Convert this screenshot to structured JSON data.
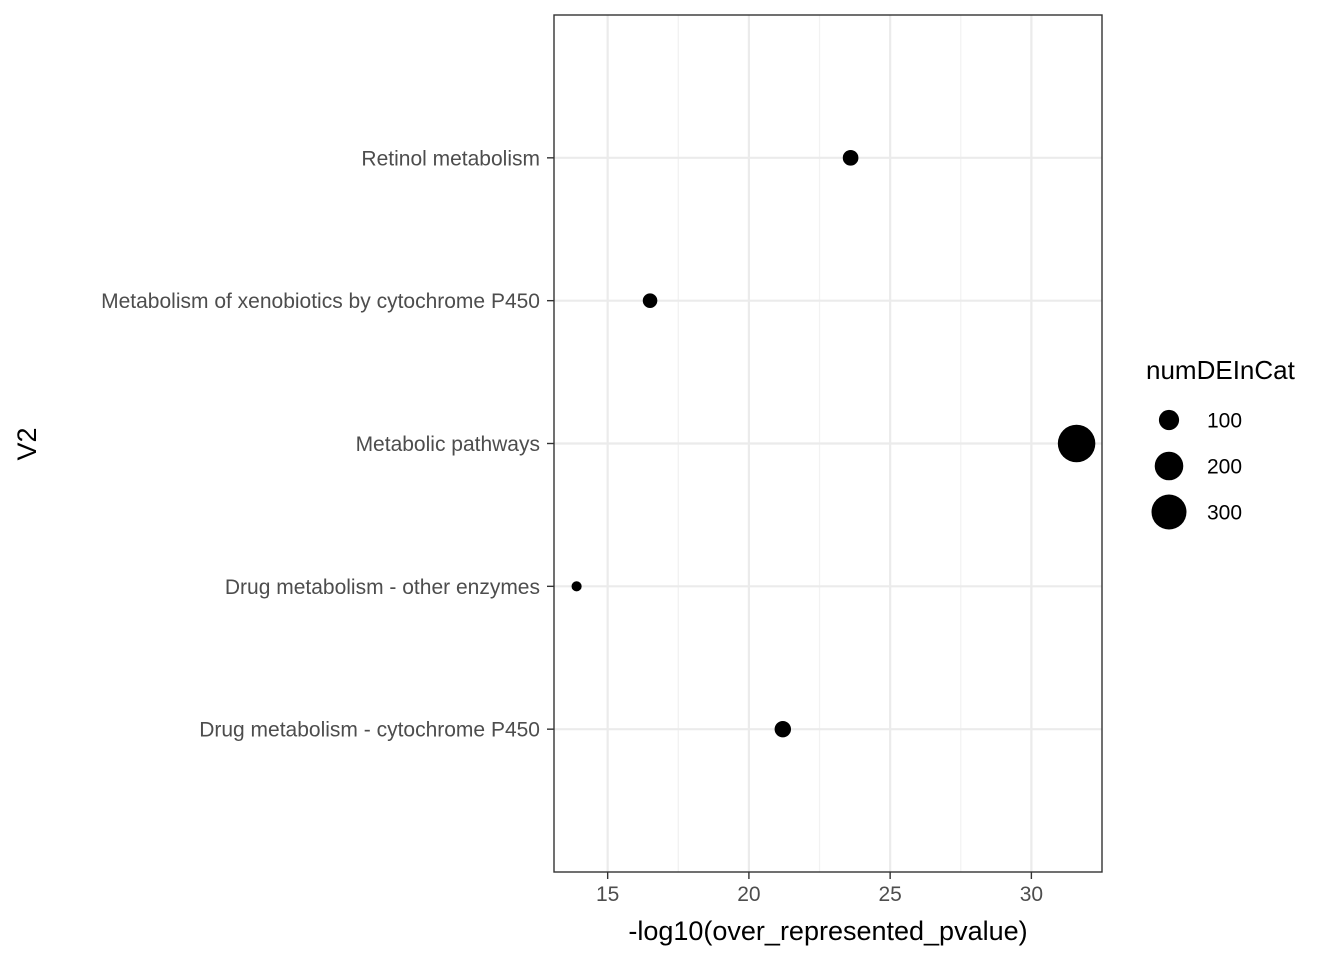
{
  "chart_data": {
    "type": "scatter",
    "xlabel": "-log10(over_represented_pvalue)",
    "ylabel": "V2",
    "xlim": [
      13.1,
      32.5
    ],
    "x_ticks": [
      15,
      20,
      25,
      30
    ],
    "categories": [
      "Drug metabolism - cytochrome P450",
      "Drug metabolism - other enzymes",
      "Metabolic pathways",
      "Metabolism of xenobiotics by cytochrome P450",
      "Retinol metabolism"
    ],
    "points": [
      {
        "category": "Retinol metabolism",
        "x": 23.6,
        "size": 60
      },
      {
        "category": "Metabolism of xenobiotics by cytochrome P450",
        "x": 16.5,
        "size": 52
      },
      {
        "category": "Metabolic pathways",
        "x": 31.6,
        "size": 345
      },
      {
        "category": "Drug metabolism - other enzymes",
        "x": 13.9,
        "size": 25
      },
      {
        "category": "Drug metabolism - cytochrome P450",
        "x": 21.2,
        "size": 66
      }
    ],
    "grid": true,
    "legend": {
      "title": "numDEInCat",
      "position": "right",
      "entries": [
        {
          "label": "100",
          "size": 100
        },
        {
          "label": "200",
          "size": 200
        },
        {
          "label": "300",
          "size": 300
        }
      ]
    },
    "colors": {
      "point": "#000000",
      "panel_border": "#333333",
      "grid_major": "#ebebeb",
      "grid_minor": "#f2f2f2",
      "tick_text": "#4d4d4d"
    }
  }
}
